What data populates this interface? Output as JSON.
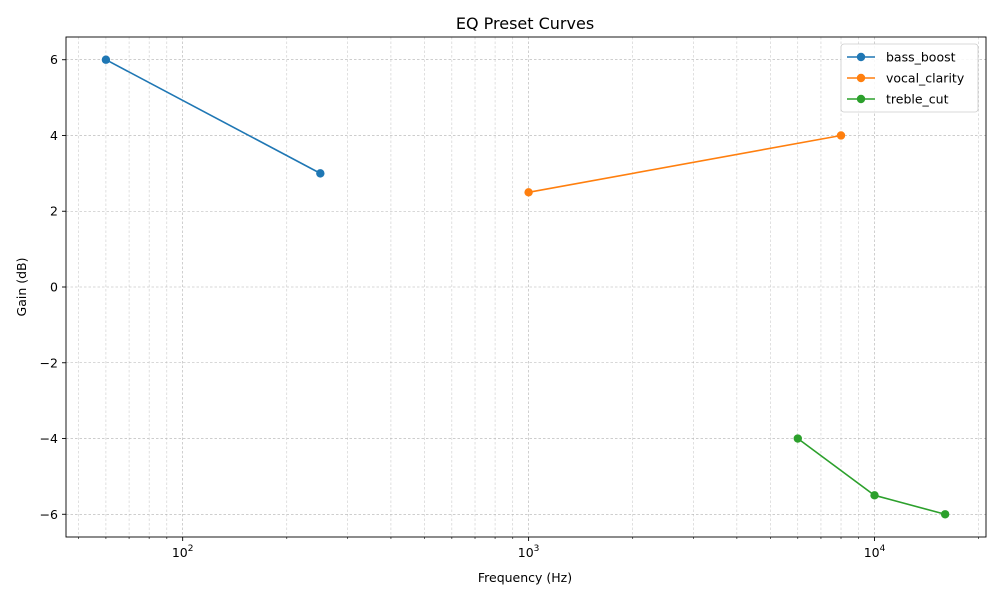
{
  "chart_data": {
    "type": "line",
    "title": "EQ Preset Curves",
    "xlabel": "Frequency (Hz)",
    "ylabel": "Gain (dB)",
    "xscale": "log",
    "xlim": [
      46,
      21000
    ],
    "ylim": [
      -6.6,
      6.6
    ],
    "grid": true,
    "legend_position": "top-right",
    "xticks": [
      {
        "value": 100,
        "base": "10",
        "exp": "2"
      },
      {
        "value": 1000,
        "base": "10",
        "exp": "3"
      },
      {
        "value": 10000,
        "base": "10",
        "exp": "4"
      }
    ],
    "yticks": [
      {
        "value": 6,
        "label": "6"
      },
      {
        "value": 4,
        "label": "4"
      },
      {
        "value": 2,
        "label": "2"
      },
      {
        "value": 0,
        "label": "0"
      },
      {
        "value": -2,
        "label": "−2"
      },
      {
        "value": -4,
        "label": "−4"
      },
      {
        "value": -6,
        "label": "−6"
      }
    ],
    "series": [
      {
        "name": "bass_boost",
        "color": "#1f77b4",
        "points": [
          {
            "x": 60,
            "y": 6
          },
          {
            "x": 250,
            "y": 3
          }
        ]
      },
      {
        "name": "vocal_clarity",
        "color": "#ff7f0e",
        "points": [
          {
            "x": 1000,
            "y": 2.5
          },
          {
            "x": 8000,
            "y": 4
          }
        ]
      },
      {
        "name": "treble_cut",
        "color": "#2ca02c",
        "points": [
          {
            "x": 6000,
            "y": -4
          },
          {
            "x": 10000,
            "y": -5.5
          },
          {
            "x": 16000,
            "y": -6
          }
        ]
      }
    ]
  }
}
